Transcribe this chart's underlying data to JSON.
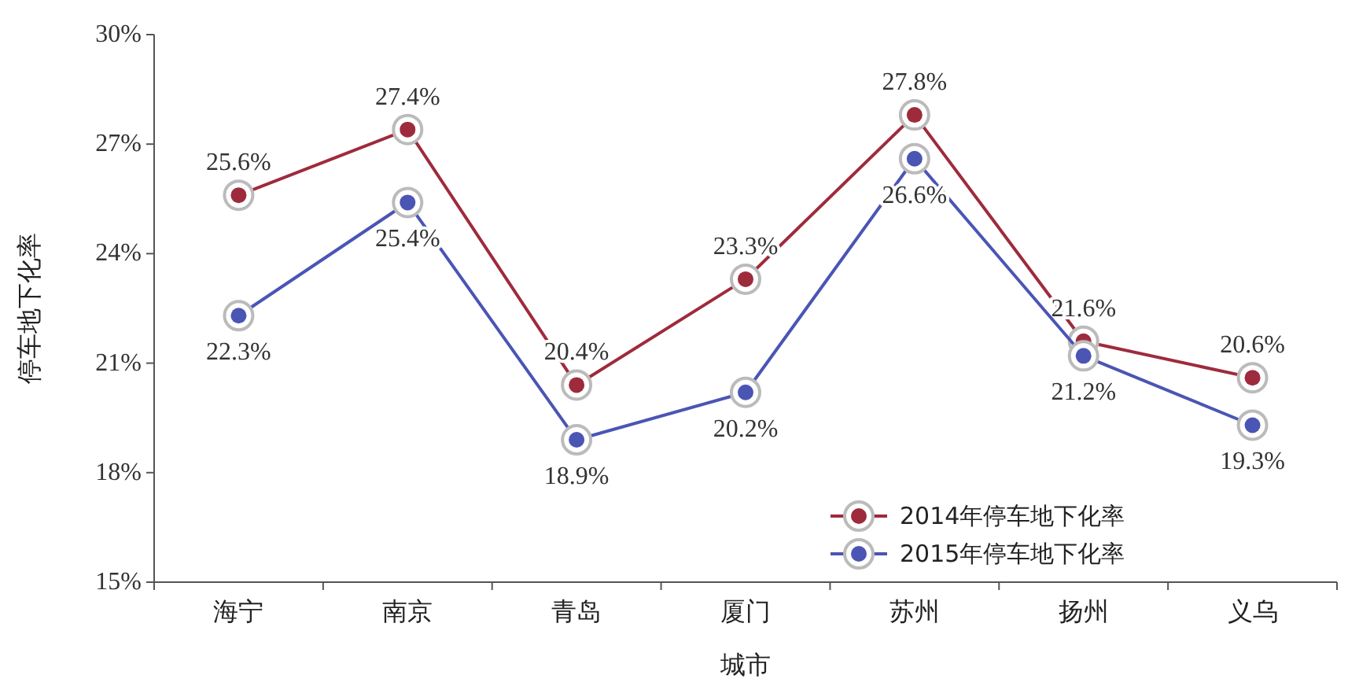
{
  "chart_data": {
    "type": "line",
    "xlabel": "城市",
    "ylabel": "停车地下化率",
    "categories": [
      "海宁",
      "南京",
      "青岛",
      "厦门",
      "苏州",
      "扬州",
      "义乌"
    ],
    "ylim": [
      15,
      30
    ],
    "yticks": [
      {
        "value": 15,
        "label": "15%"
      },
      {
        "value": 18,
        "label": "18%"
      },
      {
        "value": 21,
        "label": "21%"
      },
      {
        "value": 24,
        "label": "24%"
      },
      {
        "value": 27,
        "label": "27%"
      },
      {
        "value": 30,
        "label": "30%"
      }
    ],
    "grid": false,
    "legend": "bottom right",
    "marker": "circle",
    "line_style": "solid",
    "series": [
      {
        "name": "2014年停车地下化率",
        "color": "#9e2b3c",
        "values": [
          25.6,
          27.4,
          20.4,
          23.3,
          27.8,
          21.6,
          20.6
        ],
        "value_labels": [
          "25.6%",
          "27.4%",
          "20.4%",
          "23.3%",
          "27.8%",
          "21.6%",
          "20.6%"
        ]
      },
      {
        "name": "2015年停车地下化率",
        "color": "#4a55b4",
        "values": [
          22.3,
          25.4,
          18.9,
          20.2,
          26.6,
          21.2,
          19.3
        ],
        "value_labels": [
          "22.3%",
          "25.4%",
          "18.9%",
          "20.2%",
          "26.6%",
          "21.2%",
          "19.3%"
        ]
      }
    ]
  }
}
